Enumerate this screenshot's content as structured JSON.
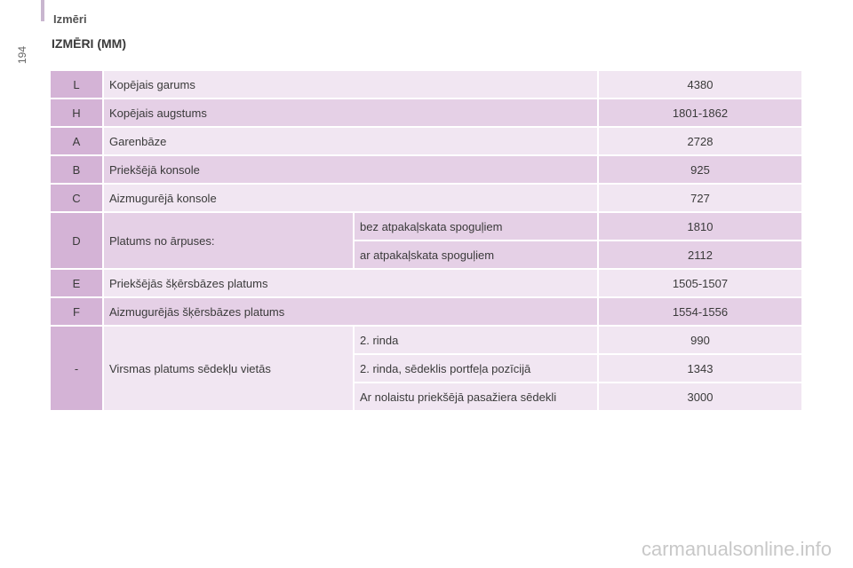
{
  "header": {
    "title": "Izmēri",
    "page_number": "194"
  },
  "section_title": "IZMĒRI (MM)",
  "rows": {
    "L": {
      "code": "L",
      "label": "Kopējais garums",
      "value": "4380"
    },
    "H": {
      "code": "H",
      "label": "Kopējais augstums",
      "value": "1801-1862"
    },
    "A": {
      "code": "A",
      "label": "Garenbāze",
      "value": "2728"
    },
    "B": {
      "code": "B",
      "label": "Priekšējā konsole",
      "value": "925"
    },
    "C": {
      "code": "C",
      "label": "Aizmugurējā konsole",
      "value": "727"
    },
    "D": {
      "code": "D",
      "label": "Platums no ārpuses:",
      "sub": [
        {
          "label": "bez atpakaļskata spoguļiem",
          "value": "1810"
        },
        {
          "label": "ar atpakaļskata spoguļiem",
          "value": "2112"
        }
      ]
    },
    "E": {
      "code": "E",
      "label": "Priekšējās šķērsbāzes platums",
      "value": "1505-1507"
    },
    "F": {
      "code": "F",
      "label": "Aizmugurējās šķērsbāzes platums",
      "value": "1554-1556"
    },
    "seat": {
      "code": "-",
      "label": "Virsmas platums sēdekļu vietās",
      "sub": [
        {
          "label": "2. rinda",
          "value": "990"
        },
        {
          "label": "2. rinda, sēdeklis portfeļa pozīcijā",
          "value": "1343"
        },
        {
          "label": "Ar nolaistu priekšējā pasažiera sēdekli",
          "value": "3000"
        }
      ]
    }
  },
  "watermark": "carmanualsonline.info"
}
